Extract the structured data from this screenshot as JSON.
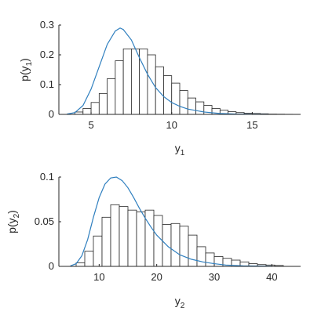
{
  "chart_data": [
    {
      "type": "histogram",
      "xlabel": "y",
      "xlabel_subscript": "1",
      "ylabel_prefix": "p(y",
      "ylabel_subscript": "1",
      "ylabel_suffix": ")",
      "xlim": [
        3,
        18
      ],
      "ylim": [
        0,
        0.3
      ],
      "xticks": [
        5,
        10,
        15
      ],
      "yticks": [
        0,
        0.1,
        0.2,
        0.3
      ],
      "ytick_labels": [
        "0",
        "0.1",
        "0.2",
        "0.3"
      ],
      "bin_width": 0.5,
      "bins": [
        {
          "x0": 4.0,
          "value": 0.008
        },
        {
          "x0": 4.5,
          "value": 0.02
        },
        {
          "x0": 5.0,
          "value": 0.04
        },
        {
          "x0": 5.5,
          "value": 0.07
        },
        {
          "x0": 6.0,
          "value": 0.12
        },
        {
          "x0": 6.5,
          "value": 0.18
        },
        {
          "x0": 7.0,
          "value": 0.22
        },
        {
          "x0": 7.5,
          "value": 0.22
        },
        {
          "x0": 8.0,
          "value": 0.22
        },
        {
          "x0": 8.5,
          "value": 0.2
        },
        {
          "x0": 9.0,
          "value": 0.16
        },
        {
          "x0": 9.5,
          "value": 0.13
        },
        {
          "x0": 10.0,
          "value": 0.105
        },
        {
          "x0": 10.5,
          "value": 0.08
        },
        {
          "x0": 11.0,
          "value": 0.055
        },
        {
          "x0": 11.5,
          "value": 0.042
        },
        {
          "x0": 12.0,
          "value": 0.03
        },
        {
          "x0": 12.5,
          "value": 0.02
        },
        {
          "x0": 13.0,
          "value": 0.014
        },
        {
          "x0": 13.5,
          "value": 0.009
        },
        {
          "x0": 14.0,
          "value": 0.006
        },
        {
          "x0": 14.5,
          "value": 0.004
        },
        {
          "x0": 15.0,
          "value": 0.003
        },
        {
          "x0": 15.5,
          "value": 0.002
        },
        {
          "x0": 16.0,
          "value": 0.001
        },
        {
          "x0": 16.5,
          "value": 0.0007
        },
        {
          "x0": 17.0,
          "value": 0.0004
        }
      ],
      "curve": {
        "x": [
          3.5,
          4.0,
          4.5,
          5.0,
          5.5,
          6.0,
          6.5,
          6.8,
          7.0,
          7.5,
          8.0,
          8.5,
          9.0,
          9.5,
          10.0,
          10.5,
          11.0,
          12.0,
          13.0,
          14.0,
          15.0,
          16.0
        ],
        "y": [
          0.001,
          0.006,
          0.03,
          0.085,
          0.16,
          0.235,
          0.28,
          0.29,
          0.285,
          0.25,
          0.19,
          0.135,
          0.09,
          0.06,
          0.04,
          0.027,
          0.018,
          0.008,
          0.003,
          0.001,
          0.0004,
          0.0001
        ]
      },
      "colors": {
        "curve": "#2f7fbf",
        "bar_edge": "#262626",
        "bar_fill": "#ffffff"
      }
    },
    {
      "type": "histogram",
      "xlabel": "y",
      "xlabel_subscript": "2",
      "ylabel_prefix": "p(y",
      "ylabel_subscript": "2",
      "ylabel_suffix": ")",
      "xlim": [
        3,
        45
      ],
      "ylim": [
        0,
        0.1
      ],
      "xticks": [
        10,
        20,
        30,
        40
      ],
      "yticks": [
        0,
        0.05,
        0.1
      ],
      "ytick_labels": [
        "0",
        "0.05",
        "0.1"
      ],
      "bin_width": 1.5,
      "bins": [
        {
          "x0": 6.0,
          "value": 0.004
        },
        {
          "x0": 7.5,
          "value": 0.017
        },
        {
          "x0": 9.0,
          "value": 0.034
        },
        {
          "x0": 10.5,
          "value": 0.055
        },
        {
          "x0": 12.0,
          "value": 0.069
        },
        {
          "x0": 13.5,
          "value": 0.067
        },
        {
          "x0": 15.0,
          "value": 0.063
        },
        {
          "x0": 16.5,
          "value": 0.061
        },
        {
          "x0": 18.0,
          "value": 0.063
        },
        {
          "x0": 19.5,
          "value": 0.057
        },
        {
          "x0": 21.0,
          "value": 0.047
        },
        {
          "x0": 22.5,
          "value": 0.048
        },
        {
          "x0": 24.0,
          "value": 0.045
        },
        {
          "x0": 25.5,
          "value": 0.035
        },
        {
          "x0": 27.0,
          "value": 0.022
        },
        {
          "x0": 28.5,
          "value": 0.015
        },
        {
          "x0": 30.0,
          "value": 0.011
        },
        {
          "x0": 31.5,
          "value": 0.009
        },
        {
          "x0": 33.0,
          "value": 0.007
        },
        {
          "x0": 34.5,
          "value": 0.005
        },
        {
          "x0": 36.0,
          "value": 0.003
        },
        {
          "x0": 37.5,
          "value": 0.002
        },
        {
          "x0": 39.0,
          "value": 0.0015
        },
        {
          "x0": 40.5,
          "value": 0.001
        }
      ],
      "curve": {
        "x": [
          5,
          6,
          7,
          8,
          9,
          10,
          11,
          12,
          13,
          14,
          15,
          16,
          17,
          18,
          19,
          20,
          22,
          24,
          26,
          28,
          30,
          32,
          35,
          40
        ],
        "y": [
          0.0005,
          0.003,
          0.012,
          0.03,
          0.055,
          0.077,
          0.092,
          0.099,
          0.1,
          0.096,
          0.088,
          0.077,
          0.065,
          0.054,
          0.044,
          0.035,
          0.022,
          0.013,
          0.008,
          0.005,
          0.003,
          0.0015,
          0.0006,
          0.0001
        ]
      },
      "colors": {
        "curve": "#2f7fbf",
        "bar_edge": "#262626",
        "bar_fill": "#ffffff"
      }
    }
  ]
}
